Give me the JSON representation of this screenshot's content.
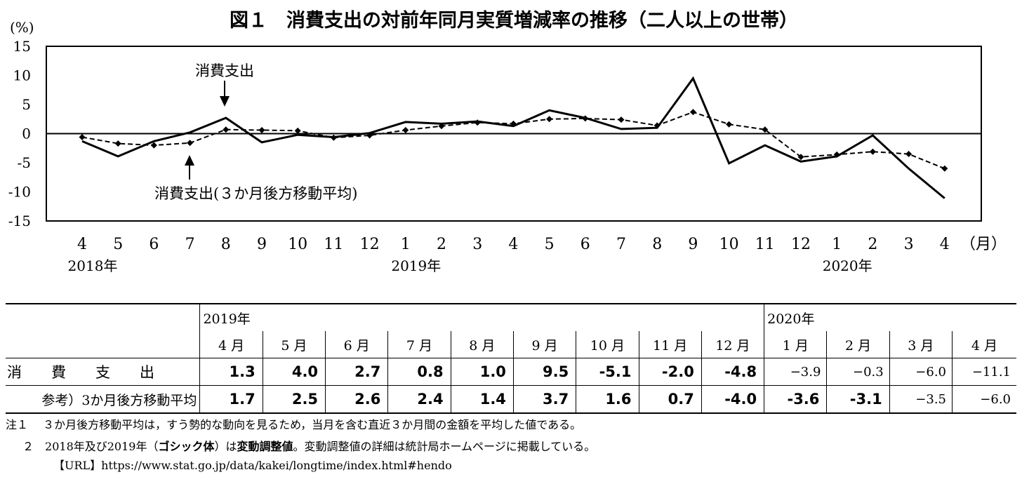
{
  "chart_data": {
    "type": "line",
    "title": "図１　消費支出の対前年同月実質増減率の推移（二人以上の世帯）",
    "yunit": "(%)",
    "xunit": "（月）",
    "ylim": [
      -15,
      15
    ],
    "yticks": [
      "15",
      "10",
      "5",
      "0",
      "-5",
      "-10",
      "-15"
    ],
    "x": [
      "4",
      "5",
      "6",
      "7",
      "8",
      "9",
      "10",
      "11",
      "12",
      "1",
      "2",
      "3",
      "4",
      "5",
      "6",
      "7",
      "8",
      "9",
      "10",
      "11",
      "12",
      "1",
      "2",
      "3",
      "4"
    ],
    "year_labels": [
      {
        "label": "2018年",
        "index": 0
      },
      {
        "label": "2019年",
        "index": 9
      },
      {
        "label": "2020年",
        "index": 21
      }
    ],
    "series": [
      {
        "name": "消費支出",
        "style": "solid",
        "values": [
          -1.3,
          -3.9,
          -1.3,
          0.2,
          2.7,
          -1.5,
          -0.2,
          -0.6,
          0.1,
          2.0,
          1.7,
          2.1,
          1.3,
          4.0,
          2.7,
          0.8,
          1.0,
          9.5,
          -5.1,
          -2.0,
          -4.8,
          -3.9,
          -0.3,
          -6.0,
          -11.1
        ]
      },
      {
        "name": "消費支出(３か月後方移動平均)",
        "style": "dashed",
        "values": [
          -0.6,
          -1.7,
          -2.0,
          -1.6,
          0.7,
          0.6,
          0.5,
          -0.7,
          -0.3,
          0.6,
          1.3,
          1.9,
          1.7,
          2.5,
          2.6,
          2.4,
          1.4,
          3.7,
          1.6,
          0.7,
          -4.0,
          -3.6,
          -3.1,
          -3.5,
          -6.0
        ]
      }
    ],
    "annotations": [
      "消費支出",
      "消費支出(３か月後方移動平均)"
    ]
  },
  "table": {
    "year_2019": "2019年",
    "year_2020": "2020年",
    "months": [
      "4 月",
      "5 月",
      "6 月",
      "7 月",
      "8 月",
      "9 月",
      "10 月",
      "11 月",
      "12 月",
      "1 月",
      "2 月",
      "3 月",
      "4 月"
    ],
    "row1_label": "消　　費　　支　　出",
    "row1_values": [
      "1.3",
      "4.0",
      "2.7",
      "0.8",
      "1.0",
      "9.5",
      "-5.1",
      "-2.0",
      "-4.8",
      "−3.9",
      "−0.3",
      "−6.0",
      "−11.1"
    ],
    "row2_label": "参考）3か月後方移動平均",
    "row2_values": [
      "1.7",
      "2.5",
      "2.6",
      "2.4",
      "1.4",
      "3.7",
      "1.6",
      "0.7",
      "-4.0",
      "-3.6",
      "-3.1",
      "−3.5",
      "−6.0"
    ],
    "bold_cols_row1": 9,
    "bold_cols_row2": 11
  },
  "notes": {
    "n1_num": "注１",
    "n1_text": "３か月後方移動平均は，すう勢的な動向を見るため，当月を含む直近３か月間の金額を平均した値である。",
    "n2_num": "２",
    "n2_a": "2018年及び2019年（",
    "n2_b": "ゴシック体",
    "n2_c": "）は",
    "n2_d": "変動調整値",
    "n2_e": "。変動調整値の詳細は統計局ホームページに掲載している。",
    "url_tag": "【URL】",
    "url": "https://www.stat.go.jp/data/kakei/longtime/index.html#hendo"
  }
}
